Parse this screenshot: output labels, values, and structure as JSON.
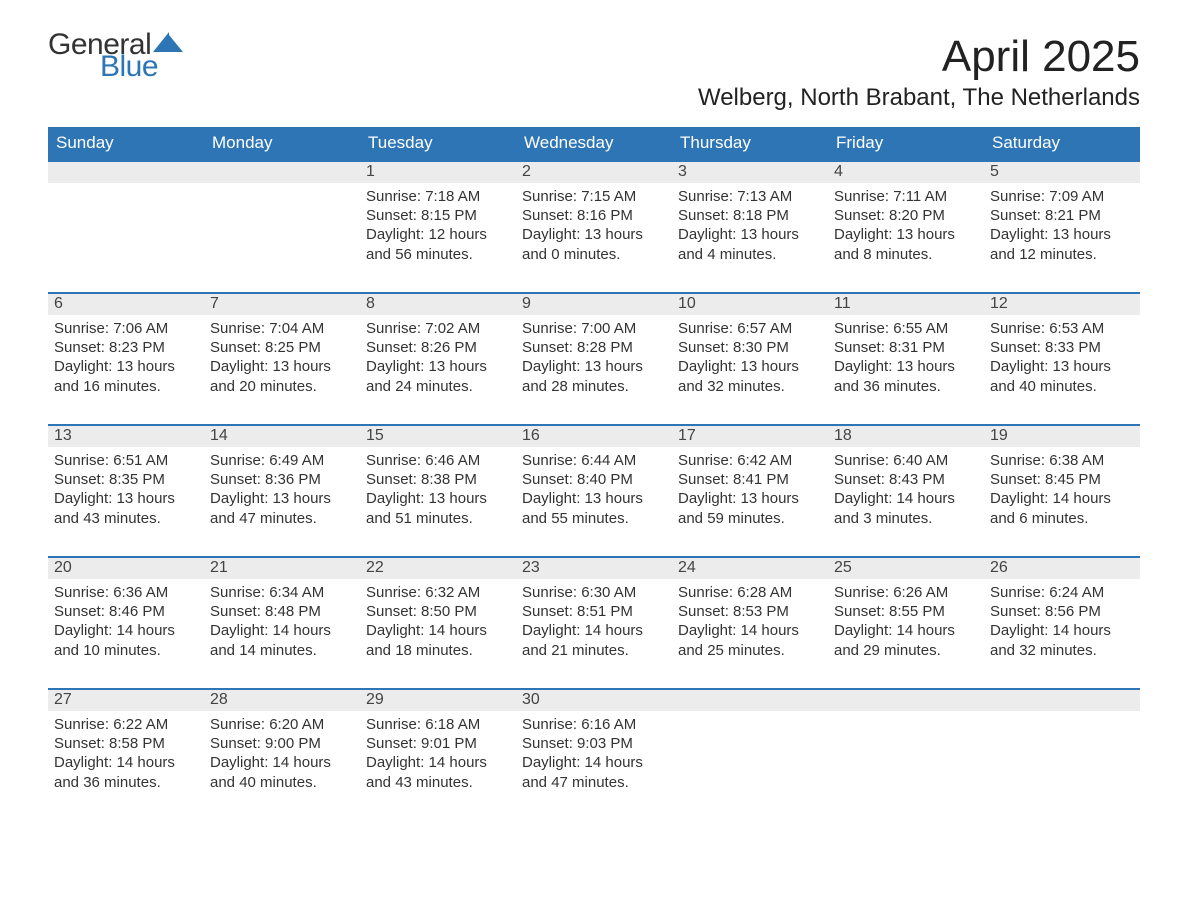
{
  "brand": {
    "word1": "General",
    "word2": "Blue",
    "accent_color": "#2e75b6"
  },
  "title": "April 2025",
  "subtitle": "Welberg, North Brabant, The Netherlands",
  "calendar": {
    "header_bg": "#2e75b6",
    "header_fg": "#ffffff",
    "daynum_bg": "#ececec",
    "row_border_color": "#2e75b6",
    "text_color": "#333333",
    "font_family": "Arial, Helvetica, sans-serif",
    "day_headers": [
      "Sunday",
      "Monday",
      "Tuesday",
      "Wednesday",
      "Thursday",
      "Friday",
      "Saturday"
    ],
    "weeks": [
      [
        null,
        null,
        {
          "n": "1",
          "sr": "7:18 AM",
          "ss": "8:15 PM",
          "dl": "12 hours and 56 minutes."
        },
        {
          "n": "2",
          "sr": "7:15 AM",
          "ss": "8:16 PM",
          "dl": "13 hours and 0 minutes."
        },
        {
          "n": "3",
          "sr": "7:13 AM",
          "ss": "8:18 PM",
          "dl": "13 hours and 4 minutes."
        },
        {
          "n": "4",
          "sr": "7:11 AM",
          "ss": "8:20 PM",
          "dl": "13 hours and 8 minutes."
        },
        {
          "n": "5",
          "sr": "7:09 AM",
          "ss": "8:21 PM",
          "dl": "13 hours and 12 minutes."
        }
      ],
      [
        {
          "n": "6",
          "sr": "7:06 AM",
          "ss": "8:23 PM",
          "dl": "13 hours and 16 minutes."
        },
        {
          "n": "7",
          "sr": "7:04 AM",
          "ss": "8:25 PM",
          "dl": "13 hours and 20 minutes."
        },
        {
          "n": "8",
          "sr": "7:02 AM",
          "ss": "8:26 PM",
          "dl": "13 hours and 24 minutes."
        },
        {
          "n": "9",
          "sr": "7:00 AM",
          "ss": "8:28 PM",
          "dl": "13 hours and 28 minutes."
        },
        {
          "n": "10",
          "sr": "6:57 AM",
          "ss": "8:30 PM",
          "dl": "13 hours and 32 minutes."
        },
        {
          "n": "11",
          "sr": "6:55 AM",
          "ss": "8:31 PM",
          "dl": "13 hours and 36 minutes."
        },
        {
          "n": "12",
          "sr": "6:53 AM",
          "ss": "8:33 PM",
          "dl": "13 hours and 40 minutes."
        }
      ],
      [
        {
          "n": "13",
          "sr": "6:51 AM",
          "ss": "8:35 PM",
          "dl": "13 hours and 43 minutes."
        },
        {
          "n": "14",
          "sr": "6:49 AM",
          "ss": "8:36 PM",
          "dl": "13 hours and 47 minutes."
        },
        {
          "n": "15",
          "sr": "6:46 AM",
          "ss": "8:38 PM",
          "dl": "13 hours and 51 minutes."
        },
        {
          "n": "16",
          "sr": "6:44 AM",
          "ss": "8:40 PM",
          "dl": "13 hours and 55 minutes."
        },
        {
          "n": "17",
          "sr": "6:42 AM",
          "ss": "8:41 PM",
          "dl": "13 hours and 59 minutes."
        },
        {
          "n": "18",
          "sr": "6:40 AM",
          "ss": "8:43 PM",
          "dl": "14 hours and 3 minutes."
        },
        {
          "n": "19",
          "sr": "6:38 AM",
          "ss": "8:45 PM",
          "dl": "14 hours and 6 minutes."
        }
      ],
      [
        {
          "n": "20",
          "sr": "6:36 AM",
          "ss": "8:46 PM",
          "dl": "14 hours and 10 minutes."
        },
        {
          "n": "21",
          "sr": "6:34 AM",
          "ss": "8:48 PM",
          "dl": "14 hours and 14 minutes."
        },
        {
          "n": "22",
          "sr": "6:32 AM",
          "ss": "8:50 PM",
          "dl": "14 hours and 18 minutes."
        },
        {
          "n": "23",
          "sr": "6:30 AM",
          "ss": "8:51 PM",
          "dl": "14 hours and 21 minutes."
        },
        {
          "n": "24",
          "sr": "6:28 AM",
          "ss": "8:53 PM",
          "dl": "14 hours and 25 minutes."
        },
        {
          "n": "25",
          "sr": "6:26 AM",
          "ss": "8:55 PM",
          "dl": "14 hours and 29 minutes."
        },
        {
          "n": "26",
          "sr": "6:24 AM",
          "ss": "8:56 PM",
          "dl": "14 hours and 32 minutes."
        }
      ],
      [
        {
          "n": "27",
          "sr": "6:22 AM",
          "ss": "8:58 PM",
          "dl": "14 hours and 36 minutes."
        },
        {
          "n": "28",
          "sr": "6:20 AM",
          "ss": "9:00 PM",
          "dl": "14 hours and 40 minutes."
        },
        {
          "n": "29",
          "sr": "6:18 AM",
          "ss": "9:01 PM",
          "dl": "14 hours and 43 minutes."
        },
        {
          "n": "30",
          "sr": "6:16 AM",
          "ss": "9:03 PM",
          "dl": "14 hours and 47 minutes."
        },
        null,
        null,
        null
      ]
    ],
    "labels": {
      "sunrise": "Sunrise:",
      "sunset": "Sunset:",
      "daylight": "Daylight:"
    }
  }
}
